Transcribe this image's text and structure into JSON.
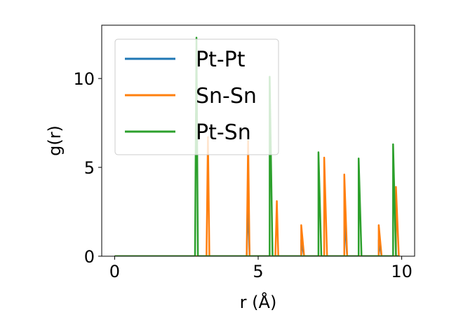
{
  "chart_data": {
    "type": "line",
    "xlabel": "r (Å)",
    "ylabel": "g(r)",
    "xlim": [
      -0.45,
      10.45
    ],
    "ylim": [
      0,
      13
    ],
    "x_ticks": [
      0,
      5,
      10
    ],
    "y_ticks": [
      0,
      5,
      10
    ],
    "grid": false,
    "legend_placement": "upper-left",
    "series": [
      {
        "name": "Pt-Pt",
        "color": "#1f77b4",
        "peaks": [
          [
            4.65,
            3.5
          ],
          [
            6.5,
            0.9
          ],
          [
            8.0,
            2.35
          ],
          [
            9.2,
            0.9
          ]
        ]
      },
      {
        "name": "Sn-Sn",
        "color": "#ff7f0e",
        "peaks": [
          [
            3.25,
            6.7
          ],
          [
            4.65,
            6.5
          ],
          [
            5.65,
            3.1
          ],
          [
            6.5,
            1.75
          ],
          [
            7.3,
            5.55
          ],
          [
            8.0,
            4.6
          ],
          [
            9.2,
            1.75
          ],
          [
            9.8,
            3.9
          ]
        ]
      },
      {
        "name": "Pt-Sn",
        "color": "#2ca02c",
        "peaks": [
          [
            2.85,
            12.3
          ],
          [
            5.4,
            10.1
          ],
          [
            7.1,
            5.85
          ],
          [
            8.5,
            5.5
          ],
          [
            9.7,
            6.3
          ]
        ]
      }
    ],
    "x_range": [
      0,
      9.9
    ],
    "x_step": 0.1
  }
}
